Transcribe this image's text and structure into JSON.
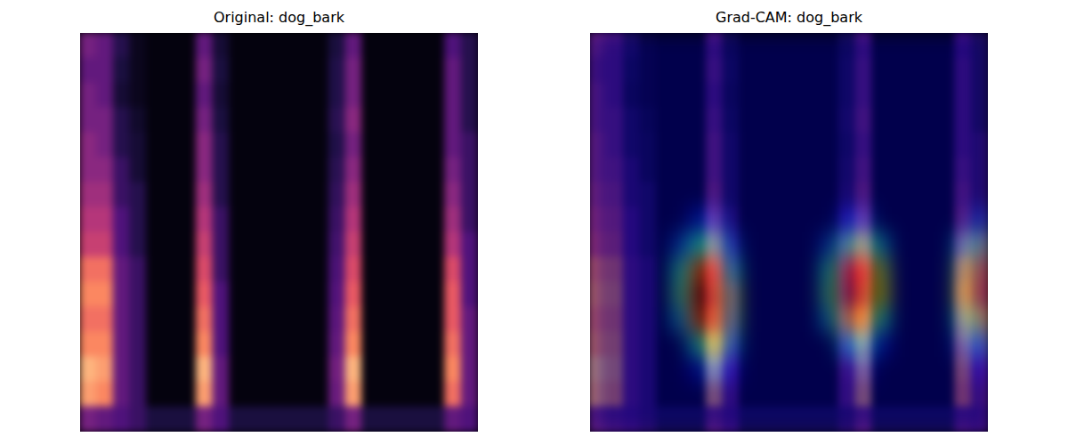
{
  "chart_data": [
    {
      "type": "heatmap",
      "title": "Original: dog_bark",
      "tick_labels": false,
      "cells": [
        [
          0.35,
          0.3,
          0.15,
          0.05,
          0.02,
          0.02,
          0.02,
          0.3,
          0.1,
          0.02,
          0.02,
          0.02,
          0.02,
          0.02,
          0.02,
          0.12,
          0.3,
          0.02,
          0.02,
          0.02,
          0.02,
          0.02,
          0.25,
          0.15
        ],
        [
          0.3,
          0.3,
          0.12,
          0.05,
          0.02,
          0.02,
          0.02,
          0.35,
          0.12,
          0.02,
          0.02,
          0.02,
          0.02,
          0.02,
          0.02,
          0.14,
          0.35,
          0.02,
          0.02,
          0.02,
          0.02,
          0.02,
          0.3,
          0.15
        ],
        [
          0.35,
          0.3,
          0.1,
          0.05,
          0.02,
          0.02,
          0.02,
          0.3,
          0.1,
          0.02,
          0.02,
          0.02,
          0.02,
          0.02,
          0.02,
          0.14,
          0.35,
          0.02,
          0.02,
          0.02,
          0.02,
          0.02,
          0.3,
          0.15
        ],
        [
          0.35,
          0.35,
          0.15,
          0.08,
          0.02,
          0.02,
          0.02,
          0.35,
          0.12,
          0.02,
          0.02,
          0.02,
          0.02,
          0.02,
          0.02,
          0.16,
          0.4,
          0.02,
          0.02,
          0.02,
          0.02,
          0.02,
          0.3,
          0.15
        ],
        [
          0.4,
          0.35,
          0.15,
          0.1,
          0.02,
          0.02,
          0.02,
          0.4,
          0.15,
          0.02,
          0.02,
          0.02,
          0.02,
          0.02,
          0.02,
          0.14,
          0.35,
          0.02,
          0.02,
          0.02,
          0.02,
          0.02,
          0.3,
          0.2
        ],
        [
          0.4,
          0.4,
          0.2,
          0.1,
          0.02,
          0.02,
          0.02,
          0.4,
          0.15,
          0.02,
          0.02,
          0.02,
          0.02,
          0.02,
          0.02,
          0.16,
          0.4,
          0.02,
          0.02,
          0.02,
          0.02,
          0.02,
          0.35,
          0.2
        ],
        [
          0.45,
          0.45,
          0.2,
          0.15,
          0.02,
          0.02,
          0.02,
          0.45,
          0.15,
          0.02,
          0.02,
          0.02,
          0.02,
          0.02,
          0.02,
          0.18,
          0.45,
          0.02,
          0.02,
          0.02,
          0.02,
          0.02,
          0.4,
          0.2
        ],
        [
          0.5,
          0.5,
          0.25,
          0.15,
          0.02,
          0.02,
          0.02,
          0.5,
          0.2,
          0.02,
          0.02,
          0.02,
          0.02,
          0.02,
          0.02,
          0.2,
          0.5,
          0.02,
          0.02,
          0.02,
          0.02,
          0.02,
          0.45,
          0.2
        ],
        [
          0.55,
          0.55,
          0.25,
          0.15,
          0.02,
          0.02,
          0.02,
          0.55,
          0.2,
          0.02,
          0.02,
          0.02,
          0.02,
          0.02,
          0.02,
          0.22,
          0.55,
          0.02,
          0.02,
          0.02,
          0.02,
          0.02,
          0.5,
          0.25
        ],
        [
          0.7,
          0.7,
          0.3,
          0.2,
          0.02,
          0.02,
          0.02,
          0.6,
          0.2,
          0.02,
          0.02,
          0.02,
          0.02,
          0.02,
          0.02,
          0.24,
          0.6,
          0.02,
          0.02,
          0.02,
          0.02,
          0.02,
          0.6,
          0.25
        ],
        [
          0.75,
          0.75,
          0.3,
          0.2,
          0.02,
          0.02,
          0.02,
          0.65,
          0.25,
          0.02,
          0.02,
          0.02,
          0.02,
          0.02,
          0.02,
          0.26,
          0.65,
          0.02,
          0.02,
          0.02,
          0.02,
          0.02,
          0.65,
          0.25
        ],
        [
          0.7,
          0.7,
          0.3,
          0.2,
          0.02,
          0.02,
          0.02,
          0.7,
          0.25,
          0.02,
          0.02,
          0.02,
          0.02,
          0.02,
          0.02,
          0.28,
          0.7,
          0.02,
          0.02,
          0.02,
          0.02,
          0.02,
          0.65,
          0.3
        ],
        [
          0.75,
          0.75,
          0.3,
          0.2,
          0.02,
          0.02,
          0.02,
          0.75,
          0.25,
          0.02,
          0.02,
          0.02,
          0.02,
          0.02,
          0.02,
          0.3,
          0.75,
          0.02,
          0.02,
          0.02,
          0.02,
          0.02,
          0.7,
          0.3
        ],
        [
          0.85,
          0.8,
          0.3,
          0.2,
          0.02,
          0.02,
          0.02,
          0.85,
          0.3,
          0.02,
          0.02,
          0.02,
          0.02,
          0.02,
          0.02,
          0.34,
          0.85,
          0.02,
          0.02,
          0.02,
          0.02,
          0.02,
          0.75,
          0.3
        ],
        [
          0.8,
          0.75,
          0.3,
          0.2,
          0.02,
          0.02,
          0.02,
          0.8,
          0.3,
          0.02,
          0.02,
          0.02,
          0.02,
          0.02,
          0.02,
          0.32,
          0.8,
          0.02,
          0.02,
          0.02,
          0.02,
          0.02,
          0.7,
          0.3
        ],
        [
          0.35,
          0.3,
          0.25,
          0.2,
          0.12,
          0.12,
          0.12,
          0.35,
          0.25,
          0.12,
          0.12,
          0.12,
          0.12,
          0.12,
          0.12,
          0.2,
          0.35,
          0.12,
          0.12,
          0.12,
          0.12,
          0.12,
          0.3,
          0.25
        ]
      ]
    },
    {
      "type": "heatmap",
      "title": "Grad-CAM: dog_bark",
      "tick_labels": false,
      "cells": [
        [
          0.35,
          0.3,
          0.15,
          0.05,
          0.02,
          0.02,
          0.02,
          0.3,
          0.1,
          0.02,
          0.02,
          0.02,
          0.02,
          0.02,
          0.02,
          0.12,
          0.3,
          0.02,
          0.02,
          0.02,
          0.02,
          0.02,
          0.25,
          0.15
        ],
        [
          0.3,
          0.3,
          0.12,
          0.05,
          0.02,
          0.02,
          0.02,
          0.35,
          0.12,
          0.02,
          0.02,
          0.02,
          0.02,
          0.02,
          0.02,
          0.14,
          0.35,
          0.02,
          0.02,
          0.02,
          0.02,
          0.02,
          0.3,
          0.15
        ],
        [
          0.35,
          0.3,
          0.1,
          0.05,
          0.02,
          0.02,
          0.02,
          0.3,
          0.1,
          0.02,
          0.02,
          0.02,
          0.02,
          0.02,
          0.02,
          0.14,
          0.35,
          0.02,
          0.02,
          0.02,
          0.02,
          0.02,
          0.3,
          0.15
        ],
        [
          0.35,
          0.35,
          0.15,
          0.08,
          0.02,
          0.02,
          0.02,
          0.35,
          0.12,
          0.02,
          0.02,
          0.02,
          0.02,
          0.02,
          0.02,
          0.16,
          0.4,
          0.02,
          0.02,
          0.02,
          0.02,
          0.02,
          0.3,
          0.15
        ],
        [
          0.4,
          0.35,
          0.15,
          0.1,
          0.02,
          0.02,
          0.02,
          0.4,
          0.15,
          0.02,
          0.02,
          0.02,
          0.02,
          0.02,
          0.02,
          0.14,
          0.35,
          0.02,
          0.02,
          0.02,
          0.02,
          0.02,
          0.3,
          0.2
        ],
        [
          0.4,
          0.4,
          0.2,
          0.1,
          0.02,
          0.02,
          0.02,
          0.4,
          0.15,
          0.02,
          0.02,
          0.02,
          0.02,
          0.02,
          0.02,
          0.16,
          0.4,
          0.02,
          0.02,
          0.02,
          0.02,
          0.02,
          0.35,
          0.2
        ],
        [
          0.45,
          0.45,
          0.2,
          0.15,
          0.02,
          0.02,
          0.02,
          0.45,
          0.15,
          0.02,
          0.02,
          0.02,
          0.02,
          0.02,
          0.02,
          0.18,
          0.45,
          0.02,
          0.02,
          0.02,
          0.02,
          0.02,
          0.4,
          0.2
        ],
        [
          0.5,
          0.5,
          0.25,
          0.15,
          0.02,
          0.02,
          0.02,
          0.5,
          0.2,
          0.02,
          0.02,
          0.02,
          0.02,
          0.02,
          0.02,
          0.2,
          0.5,
          0.02,
          0.02,
          0.02,
          0.02,
          0.02,
          0.45,
          0.2
        ],
        [
          0.55,
          0.55,
          0.25,
          0.15,
          0.02,
          0.02,
          0.02,
          0.55,
          0.2,
          0.02,
          0.02,
          0.02,
          0.02,
          0.02,
          0.02,
          0.22,
          0.55,
          0.02,
          0.02,
          0.02,
          0.02,
          0.02,
          0.5,
          0.25
        ],
        [
          0.7,
          0.7,
          0.3,
          0.2,
          0.02,
          0.02,
          0.02,
          0.6,
          0.2,
          0.02,
          0.02,
          0.02,
          0.02,
          0.02,
          0.02,
          0.24,
          0.6,
          0.02,
          0.02,
          0.02,
          0.02,
          0.02,
          0.6,
          0.25
        ],
        [
          0.75,
          0.75,
          0.3,
          0.2,
          0.02,
          0.02,
          0.02,
          0.65,
          0.25,
          0.02,
          0.02,
          0.02,
          0.02,
          0.02,
          0.02,
          0.26,
          0.65,
          0.02,
          0.02,
          0.02,
          0.02,
          0.02,
          0.65,
          0.25
        ],
        [
          0.7,
          0.7,
          0.3,
          0.2,
          0.02,
          0.02,
          0.02,
          0.7,
          0.25,
          0.02,
          0.02,
          0.02,
          0.02,
          0.02,
          0.02,
          0.28,
          0.7,
          0.02,
          0.02,
          0.02,
          0.02,
          0.02,
          0.65,
          0.3
        ],
        [
          0.75,
          0.75,
          0.3,
          0.2,
          0.02,
          0.02,
          0.02,
          0.75,
          0.25,
          0.02,
          0.02,
          0.02,
          0.02,
          0.02,
          0.02,
          0.3,
          0.75,
          0.02,
          0.02,
          0.02,
          0.02,
          0.02,
          0.7,
          0.3
        ],
        [
          0.85,
          0.8,
          0.3,
          0.2,
          0.02,
          0.02,
          0.02,
          0.85,
          0.3,
          0.02,
          0.02,
          0.02,
          0.02,
          0.02,
          0.02,
          0.34,
          0.85,
          0.02,
          0.02,
          0.02,
          0.02,
          0.02,
          0.75,
          0.3
        ],
        [
          0.8,
          0.75,
          0.3,
          0.2,
          0.02,
          0.02,
          0.02,
          0.8,
          0.3,
          0.02,
          0.02,
          0.02,
          0.02,
          0.02,
          0.02,
          0.32,
          0.8,
          0.02,
          0.02,
          0.02,
          0.02,
          0.02,
          0.7,
          0.3
        ],
        [
          0.35,
          0.3,
          0.25,
          0.2,
          0.12,
          0.12,
          0.12,
          0.35,
          0.25,
          0.12,
          0.12,
          0.12,
          0.12,
          0.12,
          0.12,
          0.2,
          0.35,
          0.12,
          0.12,
          0.12,
          0.12,
          0.12,
          0.3,
          0.25
        ]
      ],
      "cam": [
        [
          0,
          0,
          0,
          0,
          0,
          0,
          0,
          0,
          0,
          0,
          0,
          0,
          0,
          0,
          0,
          0,
          0,
          0,
          0,
          0,
          0,
          0,
          0,
          0
        ],
        [
          0,
          0,
          0,
          0,
          0,
          0,
          0,
          0,
          0,
          0,
          0,
          0,
          0,
          0,
          0,
          0,
          0,
          0,
          0,
          0,
          0,
          0,
          0,
          0
        ],
        [
          0,
          0,
          0,
          0,
          0,
          0,
          0,
          0,
          0,
          0,
          0,
          0,
          0,
          0,
          0,
          0,
          0,
          0,
          0,
          0,
          0,
          0,
          0,
          0
        ],
        [
          0,
          0,
          0,
          0,
          0,
          0,
          0,
          0,
          0,
          0,
          0,
          0,
          0,
          0,
          0,
          0,
          0,
          0,
          0,
          0,
          0,
          0,
          0,
          0
        ],
        [
          0,
          0,
          0,
          0,
          0,
          0,
          0,
          0,
          0,
          0,
          0,
          0,
          0,
          0,
          0,
          0,
          0,
          0,
          0,
          0,
          0,
          0,
          0,
          0
        ],
        [
          0,
          0,
          0,
          0,
          0,
          0,
          0,
          0,
          0,
          0,
          0,
          0,
          0,
          0,
          0,
          0,
          0,
          0,
          0,
          0,
          0,
          0,
          0,
          0
        ],
        [
          0,
          0,
          0,
          0,
          0,
          0,
          0,
          0,
          0,
          0,
          0,
          0,
          0,
          0,
          0,
          0,
          0,
          0,
          0,
          0,
          0,
          0,
          0,
          0
        ],
        [
          0,
          0,
          0,
          0,
          0,
          0,
          0.15,
          0.2,
          0,
          0,
          0,
          0,
          0,
          0,
          0,
          0.15,
          0.2,
          0,
          0,
          0,
          0,
          0,
          0,
          0.2
        ],
        [
          0,
          0,
          0,
          0,
          0,
          0.2,
          0.4,
          0.45,
          0.2,
          0,
          0,
          0,
          0,
          0,
          0.2,
          0.45,
          0.5,
          0.3,
          0,
          0,
          0,
          0,
          0.3,
          0.5
        ],
        [
          0,
          0,
          0,
          0,
          0,
          0.4,
          0.8,
          0.85,
          0.4,
          0,
          0,
          0,
          0,
          0,
          0.4,
          0.85,
          0.9,
          0.55,
          0,
          0,
          0,
          0,
          0.5,
          0.75
        ],
        [
          0,
          0,
          0,
          0,
          0,
          0.45,
          0.95,
          1.0,
          0.55,
          0,
          0,
          0,
          0,
          0,
          0.45,
          0.95,
          1.0,
          0.6,
          0,
          0,
          0,
          0,
          0.55,
          0.8
        ],
        [
          0,
          0,
          0,
          0,
          0,
          0.3,
          0.8,
          0.95,
          0.5,
          0,
          0,
          0,
          0,
          0,
          0.3,
          0.7,
          0.75,
          0.4,
          0,
          0,
          0,
          0,
          0.4,
          0.6
        ],
        [
          0,
          0,
          0,
          0,
          0,
          0,
          0.35,
          0.6,
          0.3,
          0,
          0,
          0,
          0,
          0,
          0,
          0.3,
          0.35,
          0.15,
          0,
          0,
          0,
          0,
          0.2,
          0.3
        ],
        [
          0,
          0,
          0,
          0,
          0,
          0,
          0.1,
          0.25,
          0.1,
          0,
          0,
          0,
          0,
          0,
          0,
          0,
          0.1,
          0,
          0,
          0,
          0,
          0,
          0,
          0.1
        ],
        [
          0,
          0,
          0,
          0,
          0,
          0,
          0,
          0,
          0,
          0,
          0,
          0,
          0,
          0,
          0,
          0,
          0,
          0,
          0,
          0,
          0,
          0,
          0,
          0
        ],
        [
          0,
          0,
          0,
          0,
          0,
          0,
          0,
          0,
          0,
          0,
          0,
          0,
          0,
          0,
          0,
          0,
          0,
          0,
          0,
          0,
          0,
          0,
          0,
          0
        ]
      ]
    }
  ]
}
